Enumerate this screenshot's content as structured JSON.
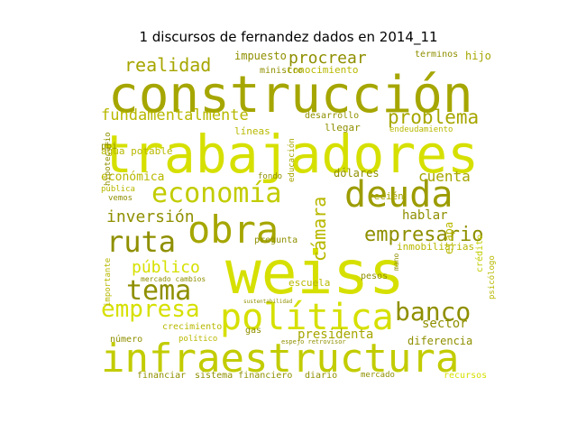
{
  "chart_data": {
    "type": "wordcloud",
    "title": "1 discursos de fernandez dados en 2014_11",
    "words": [
      {
        "text": "construcción",
        "weight": 100,
        "color": "#a6a600"
      },
      {
        "text": "trabajadores",
        "weight": 98,
        "color": "#d6e000"
      },
      {
        "text": "weiss",
        "weight": 100,
        "color": "#d6e000"
      },
      {
        "text": "infraestructura",
        "weight": 75,
        "color": "#c2cc00"
      },
      {
        "text": "obra",
        "weight": 58,
        "color": "#a6a600"
      },
      {
        "text": "deuda",
        "weight": 50,
        "color": "#9c9c00"
      },
      {
        "text": "política",
        "weight": 48,
        "color": "#d6e000"
      },
      {
        "text": "economía",
        "weight": 40,
        "color": "#c2cc00"
      },
      {
        "text": "ruta",
        "weight": 40,
        "color": "#8f8f00"
      },
      {
        "text": "tema",
        "weight": 38,
        "color": "#8f8f00"
      },
      {
        "text": "empresa",
        "weight": 34,
        "color": "#d6e000"
      },
      {
        "text": "banco",
        "weight": 30,
        "color": "#8f8f00"
      },
      {
        "text": "cámara",
        "weight": 28,
        "color": "#b8b800"
      },
      {
        "text": "empresario",
        "weight": 25,
        "color": "#8f8f00"
      },
      {
        "text": "problema",
        "weight": 24,
        "color": "#a6a600"
      },
      {
        "text": "procrear",
        "weight": 22,
        "color": "#8f8f00"
      },
      {
        "text": "realidad",
        "weight": 22,
        "color": "#a6a600"
      },
      {
        "text": "fundamentalmente",
        "weight": 21,
        "color": "#b8b800"
      },
      {
        "text": "público",
        "weight": 20,
        "color": "#d6e000"
      },
      {
        "text": "inversión",
        "weight": 20,
        "color": "#8f8f00"
      },
      {
        "text": "cuenta",
        "weight": 18,
        "color": "#a6a600"
      },
      {
        "text": "hablar",
        "weight": 16,
        "color": "#8f8f00"
      },
      {
        "text": "sector",
        "weight": 15,
        "color": "#8f8f00"
      },
      {
        "text": "presidenta",
        "weight": 15,
        "color": "#a6a600"
      },
      {
        "text": "diferencia",
        "weight": 13,
        "color": "#8f8f00"
      },
      {
        "text": "etapa",
        "weight": 13,
        "color": "#b8b800"
      },
      {
        "text": "dólares",
        "weight": 13,
        "color": "#8f8f00"
      },
      {
        "text": "económica",
        "weight": 13,
        "color": "#b8b800"
      },
      {
        "text": "impuesto",
        "weight": 12,
        "color": "#8f8f00"
      },
      {
        "text": "conocimiento",
        "weight": 11,
        "color": "#b8b800"
      },
      {
        "text": "términos",
        "weight": 10,
        "color": "#8f8f00"
      },
      {
        "text": "hijo",
        "weight": 12,
        "color": "#a6a600"
      },
      {
        "text": "ministro",
        "weight": 10,
        "color": "#8f8f00"
      },
      {
        "text": "agua potable",
        "weight": 11,
        "color": "#b8b800"
      },
      {
        "text": "líneas",
        "weight": 11,
        "color": "#b8b800"
      },
      {
        "text": "desarrollo",
        "weight": 10,
        "color": "#8f8f00"
      },
      {
        "text": "llegar",
        "weight": 11,
        "color": "#8f8f00"
      },
      {
        "text": "endeudamiento",
        "weight": 9,
        "color": "#b8b800"
      },
      {
        "text": "pbi",
        "weight": 10,
        "color": "#8f8f00"
      },
      {
        "text": "recién",
        "weight": 11,
        "color": "#a6a600"
      },
      {
        "text": "inmobiliarias",
        "weight": 11,
        "color": "#b8b800"
      },
      {
        "text": "crédito",
        "weight": 10,
        "color": "#c2cc00"
      },
      {
        "text": "psicólogo",
        "weight": 9,
        "color": "#b8b800"
      },
      {
        "text": "pesos",
        "weight": 10,
        "color": "#8f8f00"
      },
      {
        "text": "escuela",
        "weight": 11,
        "color": "#b8b800"
      },
      {
        "text": "pregunta",
        "weight": 10,
        "color": "#8f8f00"
      },
      {
        "text": "fondo",
        "weight": 9,
        "color": "#8f8f00"
      },
      {
        "text": "pública",
        "weight": 9,
        "color": "#b8b800"
      },
      {
        "text": "vemos",
        "weight": 9,
        "color": "#8f8f00"
      },
      {
        "text": "educación",
        "weight": 9,
        "color": "#a6a600"
      },
      {
        "text": "mercado cambios",
        "weight": 8,
        "color": "#8f8f00"
      },
      {
        "text": "gas",
        "weight": 10,
        "color": "#8f8f00"
      },
      {
        "text": "crecimiento",
        "weight": 10,
        "color": "#b8b800"
      },
      {
        "text": "número",
        "weight": 10,
        "color": "#8f8f00"
      },
      {
        "text": "político",
        "weight": 9,
        "color": "#b8b800"
      },
      {
        "text": "espejo retrovisor",
        "weight": 7,
        "color": "#8f8f00"
      },
      {
        "text": "financiar",
        "weight": 10,
        "color": "#8f8f00"
      },
      {
        "text": "sistema financiero",
        "weight": 10,
        "color": "#8f8f00"
      },
      {
        "text": "diario",
        "weight": 10,
        "color": "#8f8f00"
      },
      {
        "text": "mercado",
        "weight": 9,
        "color": "#8f8f00"
      },
      {
        "text": "recursos",
        "weight": 10,
        "color": "#d6e000"
      },
      {
        "text": "hipotecario",
        "weight": 9,
        "color": "#8f8f00"
      },
      {
        "text": "importante",
        "weight": 9,
        "color": "#b8b800"
      },
      {
        "text": "mano",
        "weight": 8,
        "color": "#8f8f00"
      },
      {
        "text": "sustentabilidad",
        "weight": 6,
        "color": "#8f8f00"
      }
    ]
  }
}
